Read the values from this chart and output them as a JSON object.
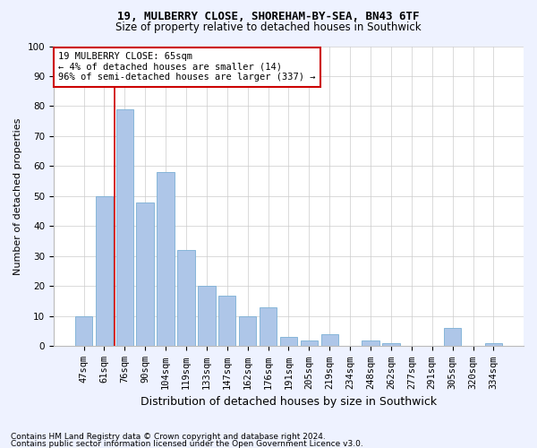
{
  "title1": "19, MULBERRY CLOSE, SHOREHAM-BY-SEA, BN43 6TF",
  "title2": "Size of property relative to detached houses in Southwick",
  "xlabel": "Distribution of detached houses by size in Southwick",
  "ylabel": "Number of detached properties",
  "categories": [
    "47sqm",
    "61sqm",
    "76sqm",
    "90sqm",
    "104sqm",
    "119sqm",
    "133sqm",
    "147sqm",
    "162sqm",
    "176sqm",
    "191sqm",
    "205sqm",
    "219sqm",
    "234sqm",
    "248sqm",
    "262sqm",
    "277sqm",
    "291sqm",
    "305sqm",
    "320sqm",
    "334sqm"
  ],
  "values": [
    10,
    50,
    79,
    48,
    58,
    32,
    20,
    17,
    10,
    13,
    3,
    2,
    4,
    0,
    2,
    1,
    0,
    0,
    6,
    0,
    1
  ],
  "bar_color": "#aec6e8",
  "bar_edge_color": "#7aafd4",
  "annotation_text": "19 MULBERRY CLOSE: 65sqm\n← 4% of detached houses are smaller (14)\n96% of semi-detached houses are larger (337) →",
  "annotation_box_color": "white",
  "annotation_box_edge_color": "#cc0000",
  "vline_color": "#cc0000",
  "vline_x": 1.5,
  "ylim": [
    0,
    100
  ],
  "yticks": [
    0,
    10,
    20,
    30,
    40,
    50,
    60,
    70,
    80,
    90,
    100
  ],
  "footnote1": "Contains HM Land Registry data © Crown copyright and database right 2024.",
  "footnote2": "Contains public sector information licensed under the Open Government Licence v3.0.",
  "bg_color": "#eef2ff",
  "plot_bg_color": "#ffffff",
  "title1_fontsize": 9,
  "title2_fontsize": 8.5,
  "ylabel_fontsize": 8,
  "xlabel_fontsize": 9,
  "tick_fontsize": 7.5,
  "annot_fontsize": 7.5,
  "footnote_fontsize": 6.5
}
